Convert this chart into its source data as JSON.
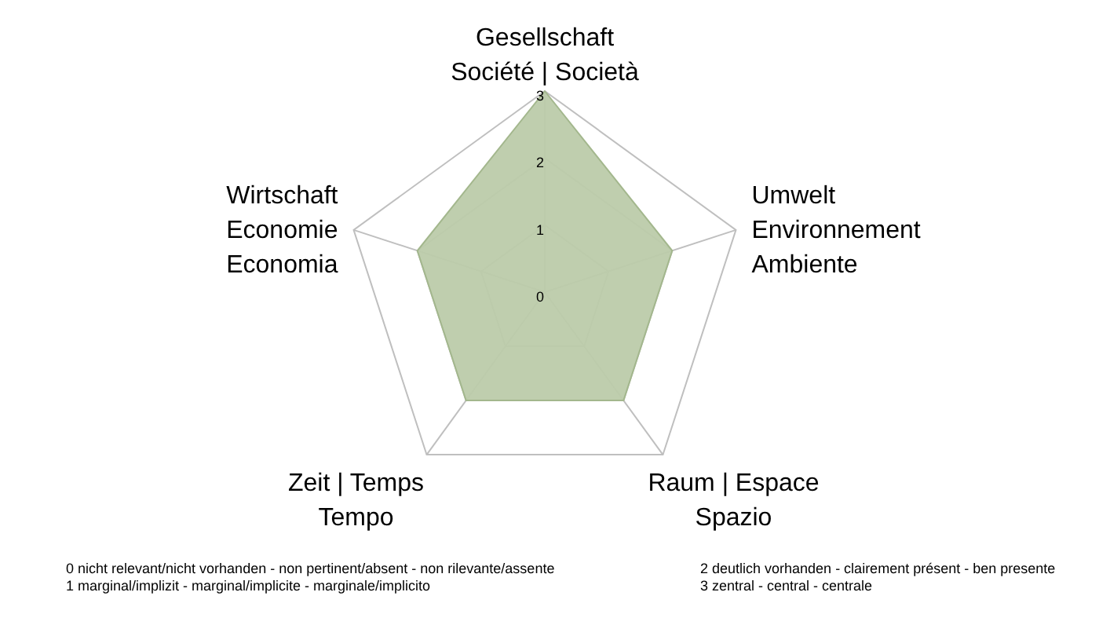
{
  "chart_data": {
    "type": "radar",
    "categories": [
      "Gesellschaft\nSociété | Società",
      "Umwelt\nEnvironnement\nAmbiente",
      "Raum | Espace\nSpazio",
      "Zeit | Temps\nTempo",
      "Wirtschaft\nEconomie\nEconomia"
    ],
    "series": [
      {
        "color": "#bccbaa",
        "values": [
          3,
          2,
          2,
          2,
          2
        ]
      }
    ],
    "ylim": [
      0,
      3
    ],
    "yticks": [
      0,
      1,
      2,
      3
    ],
    "grid": true,
    "annotations": [
      "0 nicht relevant/nicht vorhanden -  non pertinent/absent - non rilevante/assente",
      "1 marginal/implizit - marginal/implicite - marginale/implicito",
      "2 deutlich vorhanden - clairement présent - ben presente",
      "3 zentral -  central - centrale"
    ]
  }
}
